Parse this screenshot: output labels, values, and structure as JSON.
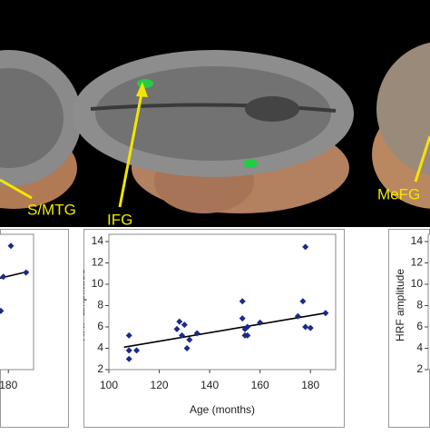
{
  "brain_labels": [
    "S/MTG",
    "IFG",
    "MeFG"
  ],
  "chart_data": [
    {
      "type": "scatter",
      "xlim": [
        100,
        190
      ],
      "ylim": [
        2,
        14
      ],
      "xticks": [
        180
      ],
      "x": [
        177,
        178,
        181,
        187
      ],
      "values": [
        7.5,
        10.7,
        13.6,
        11.1
      ],
      "trendline": {
        "x": [
          170,
          188
        ],
        "y": [
          10.2,
          11.2
        ]
      },
      "color": "#1a2a8c",
      "grid": false
    },
    {
      "type": "scatter",
      "xlim": [
        100,
        190
      ],
      "ylim": [
        2,
        14
      ],
      "xticks": [
        100,
        120,
        140,
        160,
        180
      ],
      "yticks": [
        2,
        4,
        6,
        8,
        10,
        12,
        14
      ],
      "x_label": "Age (months)",
      "y_label": "HRF amplitude",
      "x": [
        108,
        108,
        108,
        111,
        127,
        128,
        130,
        129,
        131,
        132,
        135,
        153,
        153,
        154,
        155,
        154,
        160,
        155,
        175,
        177,
        178,
        178,
        180,
        186
      ],
      "values": [
        3.0,
        3.8,
        5.2,
        3.8,
        5.8,
        6.5,
        6.2,
        5.2,
        4.0,
        4.8,
        5.4,
        8.4,
        6.8,
        5.2,
        5.2,
        5.8,
        6.4,
        6.0,
        7.0,
        8.4,
        13.5,
        6.0,
        5.9,
        7.3
      ],
      "trendline": {
        "x": [
          106,
          186
        ],
        "y": [
          4.1,
          7.3
        ]
      },
      "color": "#1a2a8c",
      "grid": false
    },
    {
      "type": "scatter",
      "xlim": [
        100,
        190
      ],
      "ylim": [
        2,
        14
      ],
      "yticks": [
        2,
        4,
        6,
        8,
        10,
        12,
        14
      ],
      "y_label": "HRF amplitude",
      "x": [],
      "values": [],
      "color": "#1a2a8c",
      "grid": false
    }
  ]
}
